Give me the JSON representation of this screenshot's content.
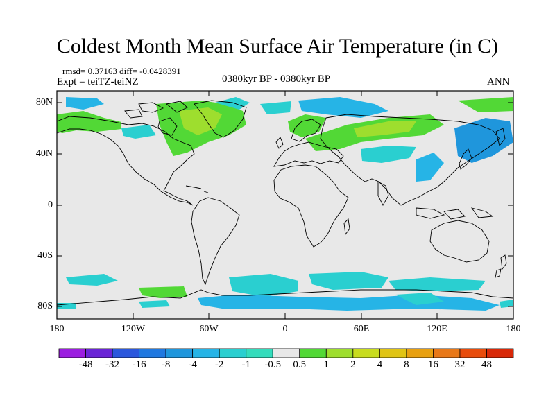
{
  "title": "Coldest Month Mean Surface Air Temperature (in C)",
  "stats": "rmsd= 0.37163  diff= -0.0428391",
  "expt": "Expt = teiTZ-teiNZ",
  "period": "0380kyr BP - 0380kyr BP",
  "season": "ANN",
  "lat_labels": [
    "80N",
    "40N",
    "0",
    "40S",
    "80S"
  ],
  "lon_labels": [
    "180",
    "120W",
    "60W",
    "0",
    "60E",
    "120E",
    "180"
  ],
  "colorbar": {
    "labels": [
      "-48",
      "-32",
      "-16",
      "-8",
      "-4",
      "-2",
      "-1",
      "-0.5",
      "0.5",
      "1",
      "2",
      "4",
      "8",
      "16",
      "32",
      "48"
    ],
    "colors": [
      "#9b1de0",
      "#6a24d6",
      "#2b57dc",
      "#1f78e0",
      "#1f96dc",
      "#26b4e6",
      "#2acfd0",
      "#34dcbc",
      "#e8e8e8",
      "#52d836",
      "#9ede2e",
      "#c8dc1e",
      "#e0c414",
      "#e8a010",
      "#e87818",
      "#e84c0c",
      "#d82808"
    ]
  },
  "colors": {
    "background": "#e8e8e8",
    "land_line": "#000000"
  }
}
